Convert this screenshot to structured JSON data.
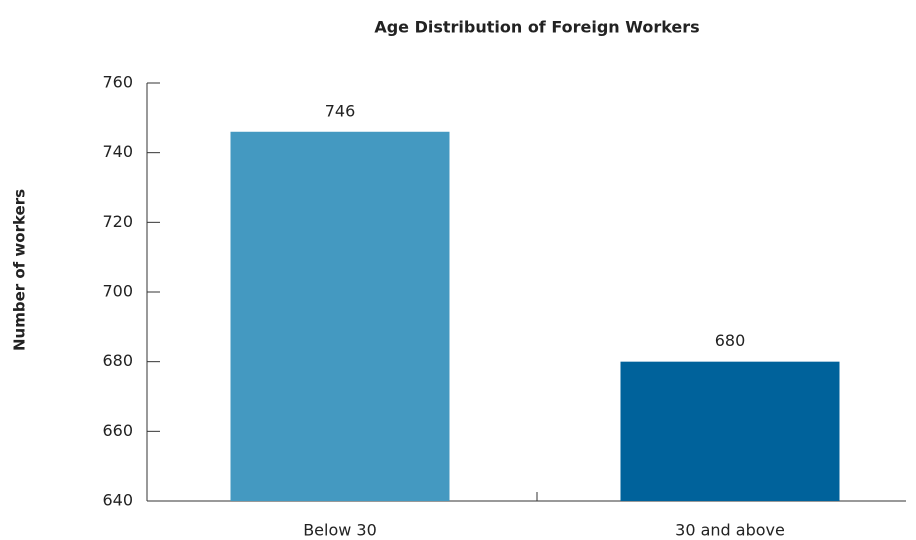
{
  "chart_data": {
    "type": "bar",
    "title": "Age Distribution of Foreign Workers",
    "y_label": "Number of workers",
    "categories": [
      "Below 30",
      "30 and above"
    ],
    "values": [
      746,
      680
    ],
    "colors": [
      "#4499c1",
      "#00629b"
    ],
    "ylim": [
      640,
      760
    ],
    "yticks": [
      640,
      660,
      680,
      700,
      720,
      740,
      760
    ],
    "grid": false
  }
}
